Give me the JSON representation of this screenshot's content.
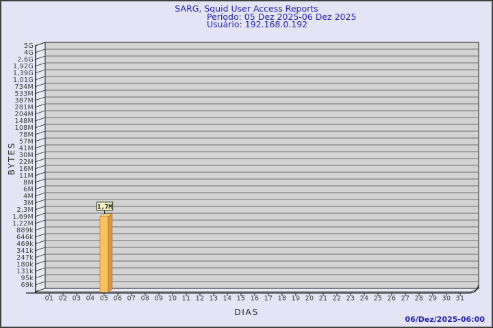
{
  "chart_data": {
    "type": "bar",
    "title": "SARG, Squid User Access Reports",
    "subtitle_period": "Período: 05 Dez 2025-06 Dez 2025",
    "subtitle_user": "Usuário: 192.168.0.192",
    "xlabel": "DIAS",
    "ylabel": "BYTES",
    "footer_timestamp": "06/Dez/2025-06:00",
    "legend": "none",
    "grid": "horizontal",
    "projection": "3d",
    "y_axis": {
      "scale": "logarithmic",
      "unit": "bytes",
      "tick_labels": [
        "5G",
        "4G",
        "2,6G",
        "1,92G",
        "1,39G",
        "1,01G",
        "734M",
        "533M",
        "387M",
        "281M",
        "204M",
        "148M",
        "108M",
        "78M",
        "57M",
        "41M",
        "30M",
        "22M",
        "16M",
        "11M",
        "8M",
        "6M",
        "4M",
        "3M",
        "2,3M",
        "1,69M",
        "1,22M",
        "889k",
        "646k",
        "469k",
        "341k",
        "247k",
        "180k",
        "131k",
        "95k",
        "69k"
      ]
    },
    "x_axis": {
      "tick_labels": [
        "01",
        "02",
        "03",
        "04",
        "05",
        "06",
        "07",
        "08",
        "09",
        "10",
        "11",
        "12",
        "13",
        "14",
        "15",
        "16",
        "17",
        "18",
        "19",
        "20",
        "21",
        "22",
        "23",
        "24",
        "25",
        "26",
        "27",
        "28",
        "29",
        "30",
        "31"
      ]
    },
    "bars": [
      {
        "day": "05",
        "value_label": "1,7M",
        "value_bytes": 1700000
      }
    ],
    "colors": {
      "background": "#e4e4f4",
      "frame_border": "#404040",
      "title_text": "#2323a8",
      "plot_bg": "#d3d3d3",
      "gridline": "#6b6b6b",
      "wall": "#eaeaf4",
      "bar_front": "#fcbf64",
      "bar_side": "#d89740",
      "bar_top": "#f5d07c",
      "bar_edge": "#9a6a2a",
      "callout_bg": "#f5f1c3",
      "axis_text": "#3d3d3d",
      "axis_line": "#141414"
    }
  }
}
